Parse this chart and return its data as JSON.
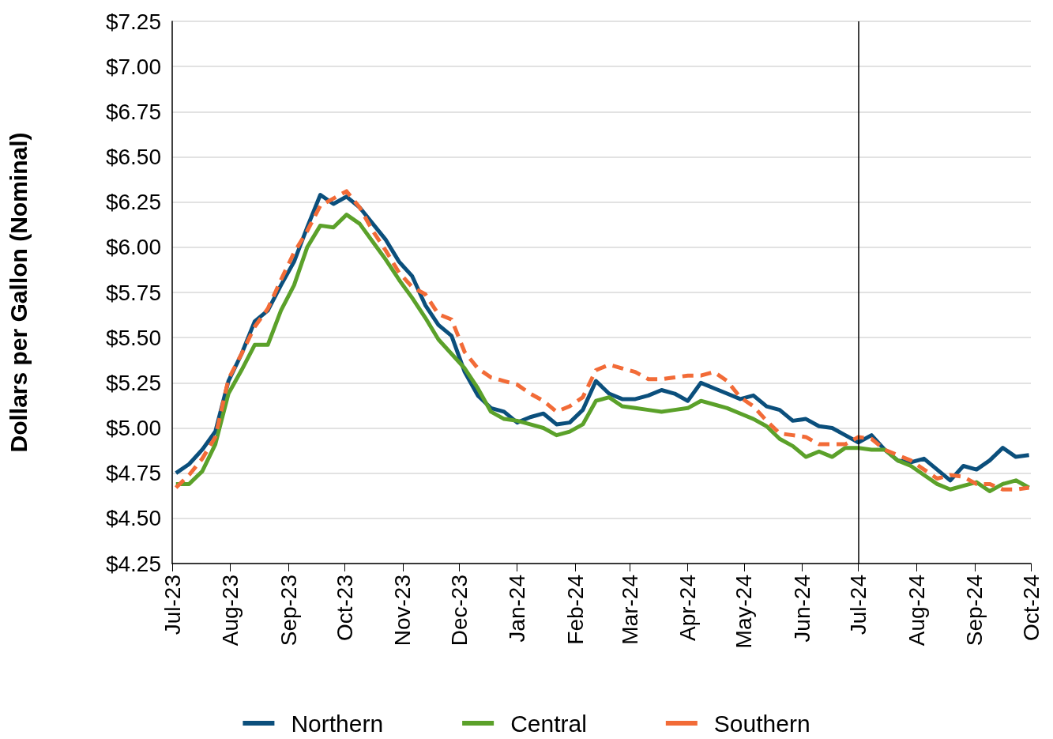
{
  "chart_data": {
    "type": "line",
    "ylabel": "Dollars per Gallon (Nominal)",
    "x": [
      "2023-07-03",
      "2023-07-10",
      "2023-07-17",
      "2023-07-24",
      "2023-07-31",
      "2023-08-07",
      "2023-08-14",
      "2023-08-21",
      "2023-08-28",
      "2023-09-04",
      "2023-09-11",
      "2023-09-18",
      "2023-09-25",
      "2023-10-02",
      "2023-10-09",
      "2023-10-16",
      "2023-10-23",
      "2023-10-30",
      "2023-11-06",
      "2023-11-13",
      "2023-11-20",
      "2023-11-27",
      "2023-12-04",
      "2023-12-11",
      "2023-12-18",
      "2023-12-25",
      "2024-01-01",
      "2024-01-08",
      "2024-01-15",
      "2024-01-22",
      "2024-01-29",
      "2024-02-05",
      "2024-02-12",
      "2024-02-19",
      "2024-02-26",
      "2024-03-04",
      "2024-03-11",
      "2024-03-18",
      "2024-03-25",
      "2024-04-01",
      "2024-04-08",
      "2024-04-15",
      "2024-04-22",
      "2024-04-29",
      "2024-05-06",
      "2024-05-13",
      "2024-05-20",
      "2024-05-27",
      "2024-06-03",
      "2024-06-10",
      "2024-06-17",
      "2024-06-24",
      "2024-07-01",
      "2024-07-08",
      "2024-07-15",
      "2024-07-22",
      "2024-07-29",
      "2024-08-05",
      "2024-08-12",
      "2024-08-19",
      "2024-08-26",
      "2024-09-02",
      "2024-09-09",
      "2024-09-16",
      "2024-09-23",
      "2024-09-30"
    ],
    "series": [
      {
        "name": "Northern",
        "color": "#0b4f7c",
        "values": [
          4.75,
          4.8,
          4.88,
          4.98,
          5.26,
          5.41,
          5.59,
          5.65,
          5.79,
          5.92,
          6.11,
          6.29,
          6.24,
          6.28,
          6.22,
          6.13,
          6.04,
          5.92,
          5.84,
          5.68,
          5.57,
          5.51,
          5.31,
          5.18,
          5.11,
          5.09,
          5.03,
          5.06,
          5.08,
          5.02,
          5.03,
          5.1,
          5.26,
          5.19,
          5.16,
          5.16,
          5.18,
          5.21,
          5.19,
          5.15,
          5.25,
          5.22,
          5.19,
          5.16,
          5.18,
          5.12,
          5.1,
          5.04,
          5.05,
          5.01,
          5.0,
          4.96,
          4.92,
          4.96,
          4.88,
          4.82,
          4.81,
          4.83,
          4.77,
          4.71,
          4.79,
          4.77,
          4.82,
          4.89,
          4.84,
          4.85
        ]
      },
      {
        "name": "Central",
        "color": "#5ba12a",
        "values": [
          4.69,
          4.69,
          4.76,
          4.91,
          5.19,
          5.32,
          5.46,
          5.46,
          5.65,
          5.79,
          6.0,
          6.12,
          6.11,
          6.18,
          6.13,
          6.03,
          5.93,
          5.82,
          5.72,
          5.61,
          5.49,
          5.41,
          5.33,
          5.22,
          5.09,
          5.05,
          5.04,
          5.02,
          5.0,
          4.96,
          4.98,
          5.02,
          5.15,
          5.17,
          5.12,
          5.11,
          5.1,
          5.09,
          5.1,
          5.11,
          5.15,
          5.13,
          5.11,
          5.08,
          5.05,
          5.01,
          4.94,
          4.9,
          4.84,
          4.87,
          4.84,
          4.89,
          4.89,
          4.88,
          4.88,
          4.82,
          4.79,
          4.74,
          4.69,
          4.66,
          4.68,
          4.7,
          4.65,
          4.69,
          4.71,
          4.67
        ]
      },
      {
        "name": "Southern",
        "color": "#f26b37",
        "line_style": "dashed",
        "values": [
          4.67,
          4.74,
          4.83,
          4.95,
          5.27,
          5.41,
          5.56,
          5.66,
          5.82,
          5.97,
          6.09,
          6.23,
          6.27,
          6.31,
          6.22,
          6.09,
          5.98,
          5.86,
          5.78,
          5.74,
          5.63,
          5.6,
          5.42,
          5.33,
          5.28,
          5.26,
          5.24,
          5.19,
          5.15,
          5.09,
          5.12,
          5.17,
          5.32,
          5.35,
          5.33,
          5.31,
          5.27,
          5.27,
          5.28,
          5.29,
          5.29,
          5.31,
          5.26,
          5.17,
          5.12,
          5.04,
          4.97,
          4.96,
          4.95,
          4.91,
          4.91,
          4.91,
          4.95,
          4.94,
          4.88,
          4.85,
          4.82,
          4.77,
          4.72,
          4.74,
          4.73,
          4.69,
          4.69,
          4.66,
          4.66,
          4.67
        ]
      }
    ],
    "xlim": [
      "2023-07-01",
      "2024-10-01"
    ],
    "xticks": [
      {
        "value": "2023-07-01",
        "label": "Jul-23"
      },
      {
        "value": "2023-08-01",
        "label": "Aug-23"
      },
      {
        "value": "2023-09-01",
        "label": "Sep-23"
      },
      {
        "value": "2023-10-01",
        "label": "Oct-23"
      },
      {
        "value": "2023-11-01",
        "label": "Nov-23"
      },
      {
        "value": "2023-12-01",
        "label": "Dec-23"
      },
      {
        "value": "2024-01-01",
        "label": "Jan-24"
      },
      {
        "value": "2024-02-01",
        "label": "Feb-24"
      },
      {
        "value": "2024-03-01",
        "label": "Mar-24"
      },
      {
        "value": "2024-04-01",
        "label": "Apr-24"
      },
      {
        "value": "2024-05-01",
        "label": "May-24"
      },
      {
        "value": "2024-06-01",
        "label": "Jun-24"
      },
      {
        "value": "2024-07-01",
        "label": "Jul-24"
      },
      {
        "value": "2024-08-01",
        "label": "Aug-24"
      },
      {
        "value": "2024-09-01",
        "label": "Sep-24"
      },
      {
        "value": "2024-10-01",
        "label": "Oct-24"
      }
    ],
    "ylim": [
      4.25,
      7.25
    ],
    "yticks": [
      {
        "value": 4.25,
        "label": "$4.25"
      },
      {
        "value": 4.5,
        "label": "$4.50"
      },
      {
        "value": 4.75,
        "label": "$4.75"
      },
      {
        "value": 5,
        "label": "$5.00"
      },
      {
        "value": 5.25,
        "label": "$5.25"
      },
      {
        "value": 5.5,
        "label": "$5.50"
      },
      {
        "value": 5.75,
        "label": "$5.75"
      },
      {
        "value": 6,
        "label": "$6.00"
      },
      {
        "value": 6.25,
        "label": "$6.25"
      },
      {
        "value": 6.5,
        "label": "$6.50"
      },
      {
        "value": 6.75,
        "label": "$6.75"
      },
      {
        "value": 7,
        "label": "$7.00"
      },
      {
        "value": 7.25,
        "label": "$7.25"
      }
    ],
    "ref_lines": [
      {
        "axis": "x",
        "value": "2024-07-01",
        "color": "#000000"
      }
    ],
    "grid": "y",
    "legend": "bottom",
    "marker": "none"
  }
}
